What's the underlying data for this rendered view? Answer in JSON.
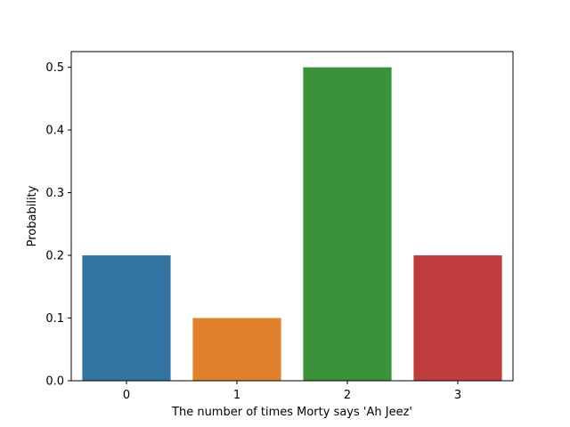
{
  "chart_data": {
    "type": "bar",
    "title": "",
    "xlabel": "The number of times Morty says 'Ah Jeez'",
    "ylabel": "Probability",
    "categories": [
      "0",
      "1",
      "2",
      "3"
    ],
    "values": [
      0.2,
      0.1,
      0.5,
      0.2
    ],
    "colors": [
      "#3274a1",
      "#e1812c",
      "#3a923a",
      "#c03d3e"
    ],
    "ylim": [
      0,
      0.525
    ],
    "yticks": [
      0.0,
      0.1,
      0.2,
      0.3,
      0.4,
      0.5
    ],
    "ytick_labels": [
      "0.0",
      "0.1",
      "0.2",
      "0.3",
      "0.4",
      "0.5"
    ],
    "grid": false,
    "legend": "none"
  }
}
